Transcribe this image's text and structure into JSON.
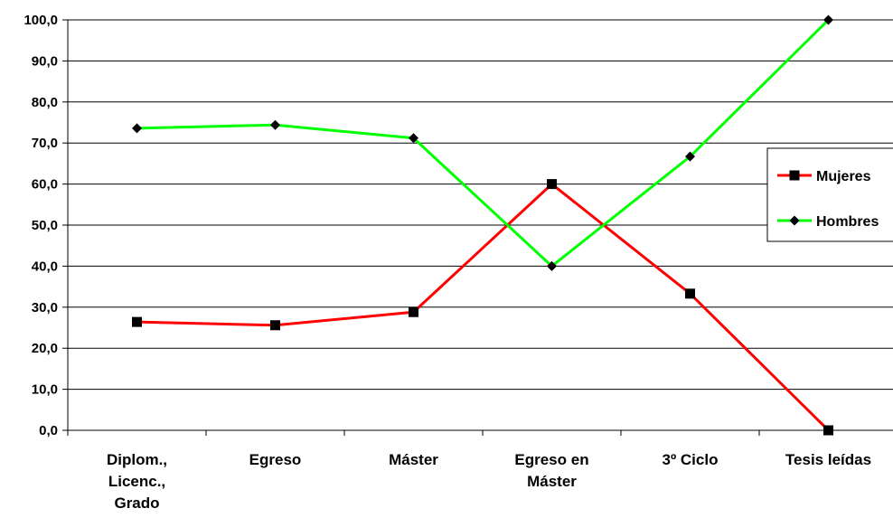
{
  "chart_data": {
    "type": "line",
    "categories": [
      [
        "Diplom.,",
        "Licenc.,",
        "Grado"
      ],
      [
        "Egreso"
      ],
      [
        "Máster"
      ],
      [
        "Egreso en",
        "Máster"
      ],
      [
        "3º Ciclo"
      ],
      [
        "Tesis leídas"
      ]
    ],
    "ylim": [
      0,
      100
    ],
    "yticks": [
      "0,0",
      "10,0",
      "20,0",
      "30,0",
      "40,0",
      "50,0",
      "60,0",
      "70,0",
      "80,0",
      "90,0",
      "100,0"
    ],
    "grid": true,
    "legend_position": "right",
    "series": [
      {
        "name": "Mujeres",
        "color": "#ff0000",
        "marker": "square",
        "values": [
          26.4,
          25.6,
          28.8,
          60.0,
          33.3,
          0.0
        ]
      },
      {
        "name": "Hombres",
        "color": "#00ff00",
        "marker": "diamond",
        "values": [
          73.6,
          74.4,
          71.2,
          40.0,
          66.7,
          100.0
        ]
      }
    ]
  }
}
